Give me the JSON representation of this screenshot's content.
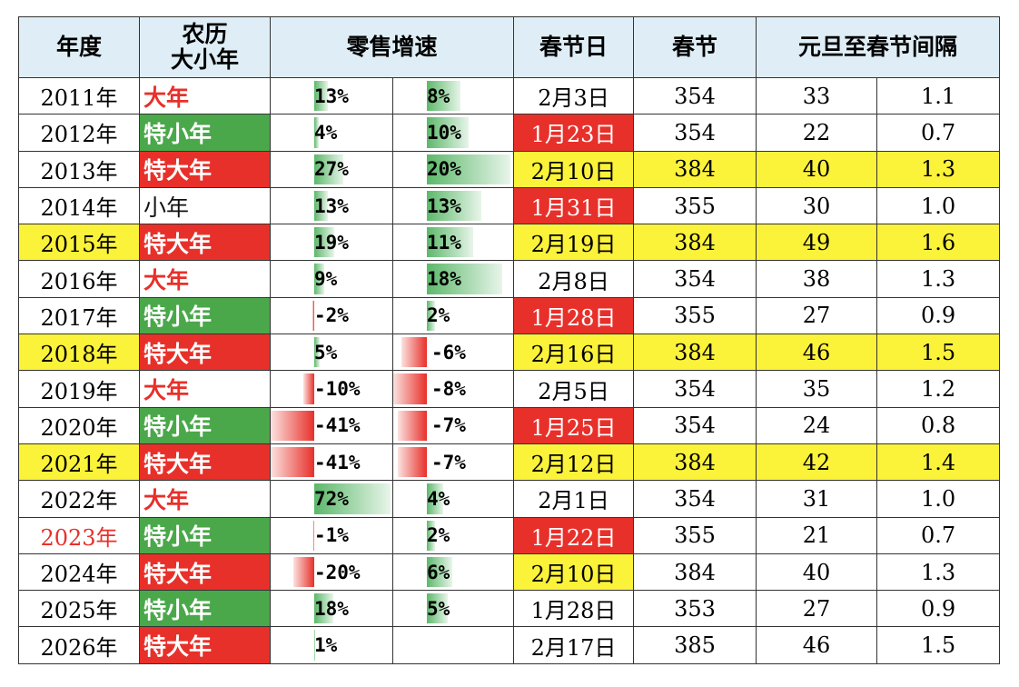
{
  "table": {
    "header": [
      "年度",
      [
        "农历",
        "大小年"
      ],
      "零售增速",
      "春节日",
      "春节",
      "元旦至春节间隔"
    ],
    "rows": [
      [
        "2011年",
        "大年",
        "13%",
        "8%",
        "2月3日",
        "354",
        "33",
        "1.1"
      ],
      [
        "2012年",
        "特小年",
        "4%",
        "10%",
        "1月23日",
        "354",
        "22",
        "0.7"
      ],
      [
        "2013年",
        "特大年",
        "27%",
        "20%",
        "2月10日",
        "384",
        "40",
        "1.3"
      ],
      [
        "2014年",
        "小年",
        "13%",
        "13%",
        "1月31日",
        "355",
        "30",
        "1.0"
      ],
      [
        "2015年",
        "特大年",
        "19%",
        "11%",
        "2月19日",
        "384",
        "49",
        "1.6"
      ],
      [
        "2016年",
        "大年",
        "9%",
        "18%",
        "2月8日",
        "354",
        "38",
        "1.3"
      ],
      [
        "2017年",
        "特小年",
        "-2%",
        "2%",
        "1月28日",
        "355",
        "27",
        "0.9"
      ],
      [
        "2018年",
        "特大年",
        "5%",
        "-6%",
        "2月16日",
        "384",
        "46",
        "1.5"
      ],
      [
        "2019年",
        "大年",
        "-10%",
        "-8%",
        "2月5日",
        "354",
        "35",
        "1.2"
      ],
      [
        "2020年",
        "特小年",
        "-41%",
        "-7%",
        "1月25日",
        "354",
        "24",
        "0.8"
      ],
      [
        "2021年",
        "特大年",
        "-41%",
        "-7%",
        "2月12日",
        "384",
        "42",
        "1.4"
      ],
      [
        "2022年",
        "大年",
        "72%",
        "4%",
        "2月1日",
        "354",
        "31",
        "1.0"
      ],
      [
        "2023年",
        "特小年",
        "-1%",
        "2%",
        "1月22日",
        "355",
        "21",
        "0.7"
      ],
      [
        "2024年",
        "特大年",
        "-20%",
        "6%",
        "2月10日",
        "384",
        "40",
        "1.3"
      ],
      [
        "2025年",
        "特小年",
        "18%",
        "5%",
        "1月28日",
        "353",
        "27",
        "0.9"
      ],
      [
        "2026年",
        "特大年",
        "1%",
        null,
        "2月17日",
        "385",
        "46",
        "1.5"
      ]
    ]
  }
}
